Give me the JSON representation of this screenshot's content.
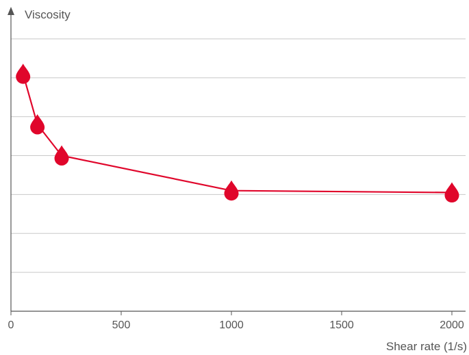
{
  "chart_data": {
    "type": "line",
    "title": "",
    "xlabel": "Shear rate (1/s)",
    "ylabel": "Viscosity",
    "xlim": [
      0,
      2070
    ],
    "ylim": [
      0,
      8
    ],
    "x_ticks": [
      0,
      500,
      1000,
      1500,
      2000
    ],
    "x_tick_labels": [
      "0",
      "500",
      "1000",
      "1500",
      "2000"
    ],
    "y_gridlines": [
      1,
      2,
      3,
      4,
      5,
      6,
      7
    ],
    "y_tick_labels_shown": false,
    "grid": "horizontal",
    "legend": "none",
    "marker": "drop",
    "series": [
      {
        "x": [
          55,
          120,
          230,
          1000,
          2000
        ],
        "y": [
          6.1,
          4.8,
          4.0,
          3.1,
          3.05
        ]
      }
    ],
    "colors": {
      "series": "#e0062b",
      "gridline": "#c8c8c8",
      "axis": "#555555",
      "text": "#555555"
    }
  }
}
